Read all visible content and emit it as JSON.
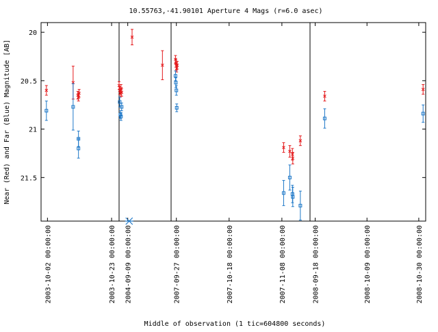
{
  "chart_data": {
    "type": "scatter",
    "title": "10.55763,-41.90101   Aperture 4 Mags (r=6.0 asec)",
    "xlabel": "Middle of observation (1 tic=604800 seconds)",
    "ylabel": "Near (Red) and Far (Blue) Magnitude [AB]",
    "ylim": [
      21.95,
      19.9
    ],
    "y_inverted": true,
    "y_ticks": [
      20,
      20.5,
      21,
      21.5
    ],
    "y_tick_labels": [
      "20",
      "20.5",
      "21",
      "21.5"
    ],
    "grid": false,
    "legend": "none",
    "segments": [
      {
        "xlim": [
          -0.3,
          3.35
        ],
        "x_ticks": [
          0,
          3
        ],
        "x_tick_labels": [
          "2003-10-02 00:00:00",
          "2003-10-23 00:00:00"
        ]
      },
      {
        "xlim": [
          -0.3,
          1.5
        ],
        "x_ticks": [
          0
        ],
        "x_tick_labels": [
          "2004-09-09 00:00:00"
        ]
      },
      {
        "xlim": [
          -0.3,
          7.6
        ],
        "x_ticks": [
          0,
          3,
          6
        ],
        "x_tick_labels": [
          "2007-09-27 00:00:00",
          "2007-10-18 00:00:00",
          "2007-11-08 00:00:00"
        ]
      },
      {
        "xlim": [
          -0.3,
          6.4
        ],
        "x_ticks": [
          0,
          3,
          6
        ],
        "x_tick_labels": [
          "2008-09-18 00:00:00",
          "2008-10-09 00:00:00",
          "2008-10-30 00:00:00"
        ]
      }
    ],
    "series": [
      {
        "name": "Near (Red)",
        "color": "#e41a1c",
        "marker": "x",
        "points": [
          {
            "seg": 0,
            "x": -0.05,
            "y": 20.6,
            "err": 0.05
          },
          {
            "seg": 0,
            "x": 1.2,
            "y": 20.52,
            "err": 0.17
          },
          {
            "seg": 0,
            "x": 1.42,
            "y": 20.65,
            "err": 0.04
          },
          {
            "seg": 0,
            "x": 1.45,
            "y": 20.67,
            "err": 0.04
          },
          {
            "seg": 0,
            "x": 1.48,
            "y": 20.63,
            "err": 0.04
          },
          {
            "seg": 0,
            "x": 3.35,
            "y": 20.55,
            "err": 0.04
          },
          {
            "seg": 0,
            "x": 3.38,
            "y": 20.6,
            "err": 0.04
          },
          {
            "seg": 0,
            "x": 3.41,
            "y": 20.63,
            "err": 0.04
          },
          {
            "seg": 0,
            "x": 3.44,
            "y": 20.58,
            "err": 0.04
          },
          {
            "seg": 0,
            "x": 3.47,
            "y": 20.62,
            "err": 0.04
          },
          {
            "seg": 1,
            "x": 0.15,
            "y": 20.05,
            "err": 0.08
          },
          {
            "seg": 1,
            "x": 1.2,
            "y": 20.34,
            "err": 0.15
          },
          {
            "seg": 2,
            "x": -0.05,
            "y": 20.28,
            "err": 0.04
          },
          {
            "seg": 2,
            "x": -0.03,
            "y": 20.32,
            "err": 0.04
          },
          {
            "seg": 2,
            "x": 0.0,
            "y": 20.35,
            "err": 0.04
          },
          {
            "seg": 2,
            "x": 0.02,
            "y": 20.37,
            "err": 0.04
          },
          {
            "seg": 2,
            "x": 0.05,
            "y": 20.34,
            "err": 0.04
          },
          {
            "seg": 2,
            "x": 6.1,
            "y": 21.19,
            "err": 0.05
          },
          {
            "seg": 2,
            "x": 6.45,
            "y": 21.23,
            "err": 0.06
          },
          {
            "seg": 2,
            "x": 6.6,
            "y": 21.26,
            "err": 0.06
          },
          {
            "seg": 2,
            "x": 6.62,
            "y": 21.3,
            "err": 0.06
          },
          {
            "seg": 2,
            "x": 7.05,
            "y": 21.12,
            "err": 0.05
          },
          {
            "seg": 3,
            "x": 0.55,
            "y": 20.66,
            "err": 0.05
          },
          {
            "seg": 3,
            "x": 6.25,
            "y": 20.59,
            "err": 0.05
          }
        ]
      },
      {
        "name": "Far (Blue)",
        "color": "#1e78c8",
        "marker": "square",
        "points": [
          {
            "seg": 0,
            "x": -0.05,
            "y": 20.81,
            "err": 0.1
          },
          {
            "seg": 0,
            "x": 1.2,
            "y": 20.77,
            "err": 0.24
          },
          {
            "seg": 0,
            "x": 1.45,
            "y": 21.1,
            "err": 0.08
          },
          {
            "seg": 0,
            "x": 1.45,
            "y": 21.2,
            "err": 0.1
          },
          {
            "seg": 0,
            "x": 3.38,
            "y": 20.72,
            "err": 0.05
          },
          {
            "seg": 0,
            "x": 3.41,
            "y": 20.85,
            "err": 0.04
          },
          {
            "seg": 0,
            "x": 3.44,
            "y": 20.87,
            "err": 0.04
          },
          {
            "seg": 0,
            "x": 3.47,
            "y": 20.77,
            "err": 0.04
          },
          {
            "seg": 2,
            "x": -0.05,
            "y": 20.45,
            "err": 0.05
          },
          {
            "seg": 2,
            "x": -0.03,
            "y": 20.52,
            "err": 0.05
          },
          {
            "seg": 2,
            "x": 0.0,
            "y": 20.6,
            "err": 0.05
          },
          {
            "seg": 2,
            "x": 0.02,
            "y": 20.78,
            "err": 0.04
          },
          {
            "seg": 2,
            "x": 6.1,
            "y": 21.66,
            "err": 0.13
          },
          {
            "seg": 2,
            "x": 6.45,
            "y": 21.5,
            "err": 0.13
          },
          {
            "seg": 2,
            "x": 6.6,
            "y": 21.67,
            "err": 0.09
          },
          {
            "seg": 2,
            "x": 6.62,
            "y": 21.7,
            "err": 0.1
          },
          {
            "seg": 2,
            "x": 7.05,
            "y": 21.79,
            "err": 0.15
          },
          {
            "seg": 3,
            "x": 0.55,
            "y": 20.89,
            "err": 0.1
          },
          {
            "seg": 3,
            "x": 6.25,
            "y": 20.84,
            "err": 0.09
          }
        ]
      }
    ],
    "annotations": [
      {
        "marker": "asterisk",
        "color": "#1e78c8",
        "seg": 1,
        "x": 0.05,
        "y": 21.95
      }
    ]
  }
}
